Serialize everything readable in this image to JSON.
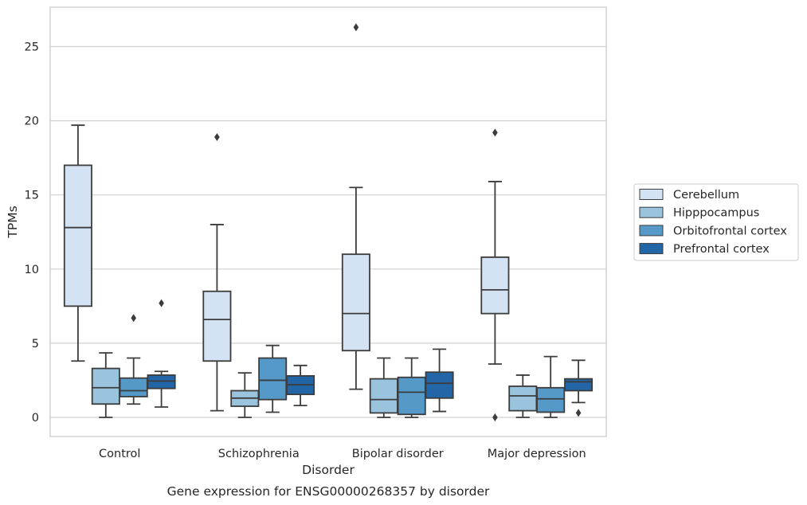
{
  "chart_data": {
    "type": "box",
    "title": "Gene expression for ENSG00000268357 by disorder",
    "xlabel": "Disorder",
    "ylabel": "TPMs",
    "ylim": [
      -1.2,
      27.6
    ],
    "yticks": [
      0,
      5,
      10,
      15,
      20,
      25
    ],
    "grid": true,
    "legend_position": "right",
    "categories": [
      "Control",
      "Schizophrenia",
      "Bipolar disorder",
      "Major depression"
    ],
    "series": [
      {
        "name": "Cerebellum",
        "color": "#d4e3f3",
        "boxes": [
          {
            "whislo": 3.8,
            "q1": 7.5,
            "med": 12.8,
            "q3": 17.0,
            "whishi": 19.7,
            "fliers": []
          },
          {
            "whislo": 0.45,
            "q1": 3.8,
            "med": 6.6,
            "q3": 8.5,
            "whishi": 13.0,
            "fliers": [
              18.9
            ]
          },
          {
            "whislo": 1.9,
            "q1": 4.5,
            "med": 7.0,
            "q3": 11.0,
            "whishi": 15.5,
            "fliers": [
              26.3
            ]
          },
          {
            "whislo": 3.6,
            "q1": 7.0,
            "med": 8.6,
            "q3": 10.8,
            "whishi": 15.9,
            "fliers": [
              19.2,
              0.0
            ]
          }
        ]
      },
      {
        "name": "Hipppocampus",
        "color": "#9ac4dd",
        "boxes": [
          {
            "whislo": 0.0,
            "q1": 0.9,
            "med": 2.0,
            "q3": 3.3,
            "whishi": 4.35,
            "fliers": []
          },
          {
            "whislo": 0.0,
            "q1": 0.75,
            "med": 1.3,
            "q3": 1.8,
            "whishi": 3.0,
            "fliers": []
          },
          {
            "whislo": 0.0,
            "q1": 0.3,
            "med": 1.2,
            "q3": 2.6,
            "whishi": 4.0,
            "fliers": []
          },
          {
            "whislo": 0.0,
            "q1": 0.45,
            "med": 1.45,
            "q3": 2.1,
            "whishi": 2.85,
            "fliers": []
          }
        ]
      },
      {
        "name": "Orbitofrontal cortex",
        "color": "#5499c7",
        "boxes": [
          {
            "whislo": 0.9,
            "q1": 1.4,
            "med": 1.8,
            "q3": 2.65,
            "whishi": 4.0,
            "fliers": [
              6.7
            ]
          },
          {
            "whislo": 0.35,
            "q1": 1.2,
            "med": 2.5,
            "q3": 4.0,
            "whishi": 4.85,
            "fliers": []
          },
          {
            "whislo": 0.0,
            "q1": 0.2,
            "med": 1.7,
            "q3": 2.7,
            "whishi": 4.0,
            "fliers": []
          },
          {
            "whislo": 0.0,
            "q1": 0.35,
            "med": 1.25,
            "q3": 2.0,
            "whishi": 4.1,
            "fliers": []
          }
        ]
      },
      {
        "name": "Prefrontal cortex",
        "color": "#2266a8",
        "boxes": [
          {
            "whislo": 0.7,
            "q1": 1.95,
            "med": 2.45,
            "q3": 2.85,
            "whishi": 3.1,
            "fliers": [
              7.7
            ]
          },
          {
            "whislo": 0.8,
            "q1": 1.55,
            "med": 2.2,
            "q3": 2.8,
            "whishi": 3.5,
            "fliers": []
          },
          {
            "whislo": 0.4,
            "q1": 1.3,
            "med": 2.3,
            "q3": 3.05,
            "whishi": 4.6,
            "fliers": []
          },
          {
            "whislo": 1.0,
            "q1": 1.8,
            "med": 2.4,
            "q3": 2.6,
            "whishi": 3.85,
            "fliers": [
              0.3
            ]
          }
        ]
      }
    ]
  }
}
